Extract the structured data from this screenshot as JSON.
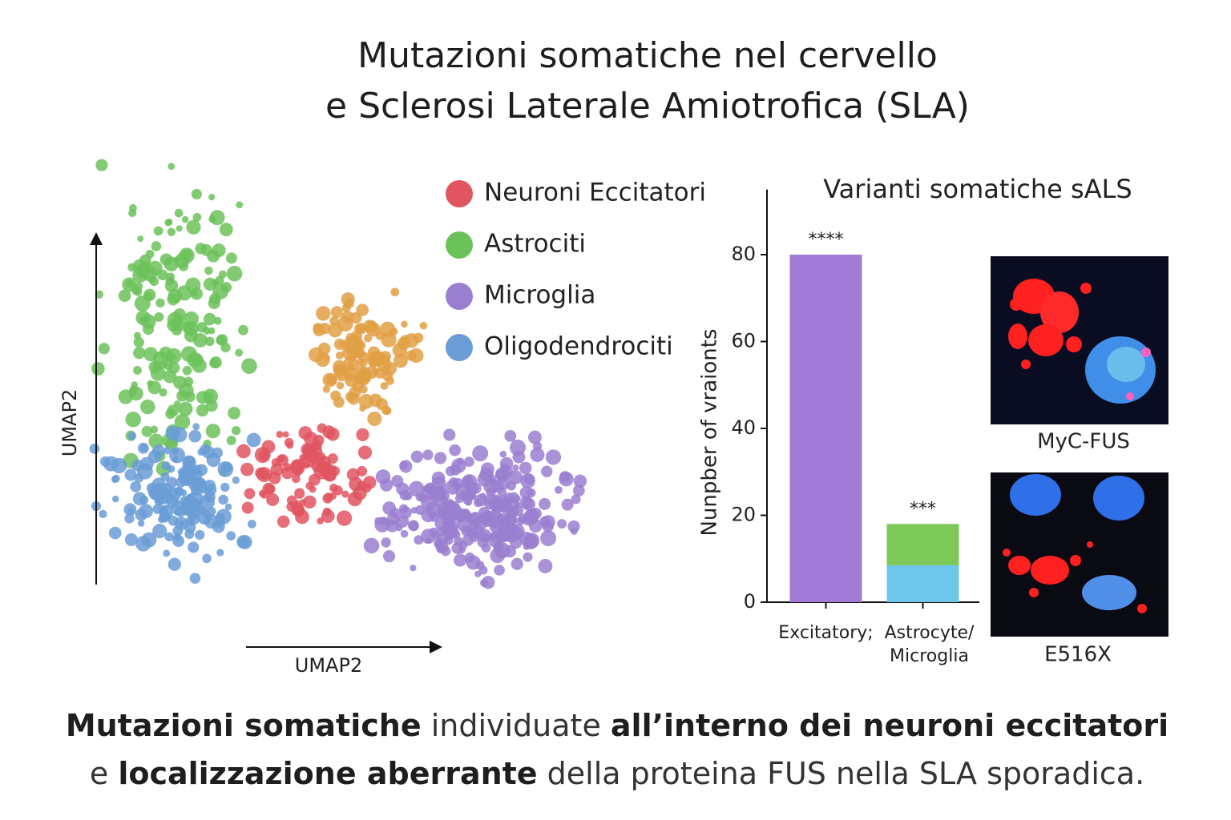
{
  "header": {
    "title": [
      "Mutazioni somatiche nel cervello",
      "e Sclerosi Laterale Amiotrofica (SLA)"
    ]
  },
  "umap": {
    "x_label": "UMAP2",
    "y_label": "UMAP2",
    "legend": [
      {
        "label": "Neuroni Eccitatori",
        "color": "#e05560"
      },
      {
        "label": "Astrociti",
        "color": "#6cc25a"
      },
      {
        "label": "Microglia",
        "color": "#9a7fd0"
      },
      {
        "label": "Oligodendrociti",
        "color": "#6a9cd6"
      }
    ],
    "extra_cluster_color": "#e2a045"
  },
  "chart_data": {
    "type": "bar",
    "title": "Varianti somatiche sALS",
    "y_label": "Nunpber of vraionts",
    "categories": [
      "Excitatory;",
      "Astrocyte/\nMicroglia"
    ],
    "series": [
      {
        "color": "#a07ad4",
        "values": [
          80,
          null
        ]
      },
      {
        "color": "#6ec6ea",
        "values": [
          null,
          8.5
        ]
      },
      {
        "color": "#7cc95a",
        "values": [
          null,
          9.5
        ]
      }
    ],
    "annotations": [
      "****",
      "***"
    ],
    "ylim": [
      0,
      95
    ],
    "yticks": [
      0,
      20,
      40,
      60,
      80
    ],
    "stacked": true
  },
  "images": [
    {
      "caption": "MyC-FUS"
    },
    {
      "caption": "E516X"
    }
  ],
  "caption": [
    [
      {
        "text": "Mutazioni somatiche",
        "bold": true
      },
      {
        "text": " individuate ",
        "bold": false
      },
      {
        "text": "all’interno dei neuroni eccitatori",
        "bold": true
      }
    ],
    [
      {
        "text": "e ",
        "bold": false
      },
      {
        "text": "localizzazione aberrante",
        "bold": true
      },
      {
        "text": " della proteina FUS nella SLA sporadica.",
        "bold": false
      }
    ]
  ]
}
